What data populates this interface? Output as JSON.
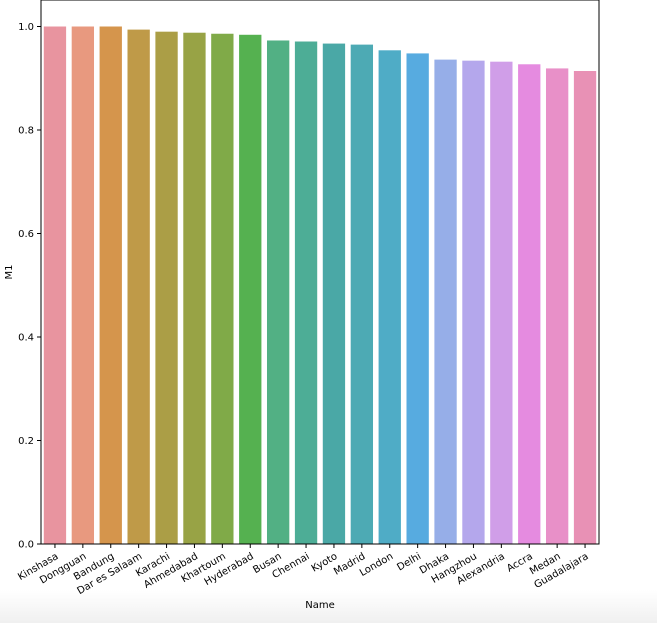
{
  "chart_data": {
    "type": "bar",
    "title": "",
    "xlabel": "Name",
    "ylabel": "M1",
    "ylim": [
      0,
      1.05
    ],
    "yticks": [
      "0.0",
      "0.2",
      "0.4",
      "0.6",
      "0.8",
      "1.0"
    ],
    "categories": [
      "Kinshasa",
      "Dongguan",
      "Bandung",
      "Dar es Salaam",
      "Karachi",
      "Ahmedabad",
      "Khartoum",
      "Hyderabad",
      "Busan",
      "Chennai",
      "Kyoto",
      "Madrid",
      "London",
      "Delhi",
      "Dhaka",
      "Hangzhou",
      "Alexandria",
      "Accra",
      "Medan",
      "Guadalajara"
    ],
    "values": [
      1.0,
      1.0,
      1.0,
      0.994,
      0.99,
      0.988,
      0.986,
      0.984,
      0.973,
      0.971,
      0.967,
      0.965,
      0.954,
      0.948,
      0.936,
      0.934,
      0.932,
      0.927,
      0.919,
      0.914
    ],
    "colors": [
      "#e8949f",
      "#e8997f",
      "#d5954c",
      "#bf9a48",
      "#ab9e46",
      "#98a345",
      "#80aa48",
      "#55b150",
      "#52b084",
      "#4dad96",
      "#4aa8a6",
      "#4daab4",
      "#4facc6",
      "#57abe0",
      "#96aee8",
      "#b4a7ec",
      "#d09ee8",
      "#e58be0",
      "#e890c8",
      "#e891b5"
    ],
    "grid": false,
    "legend": "none"
  }
}
